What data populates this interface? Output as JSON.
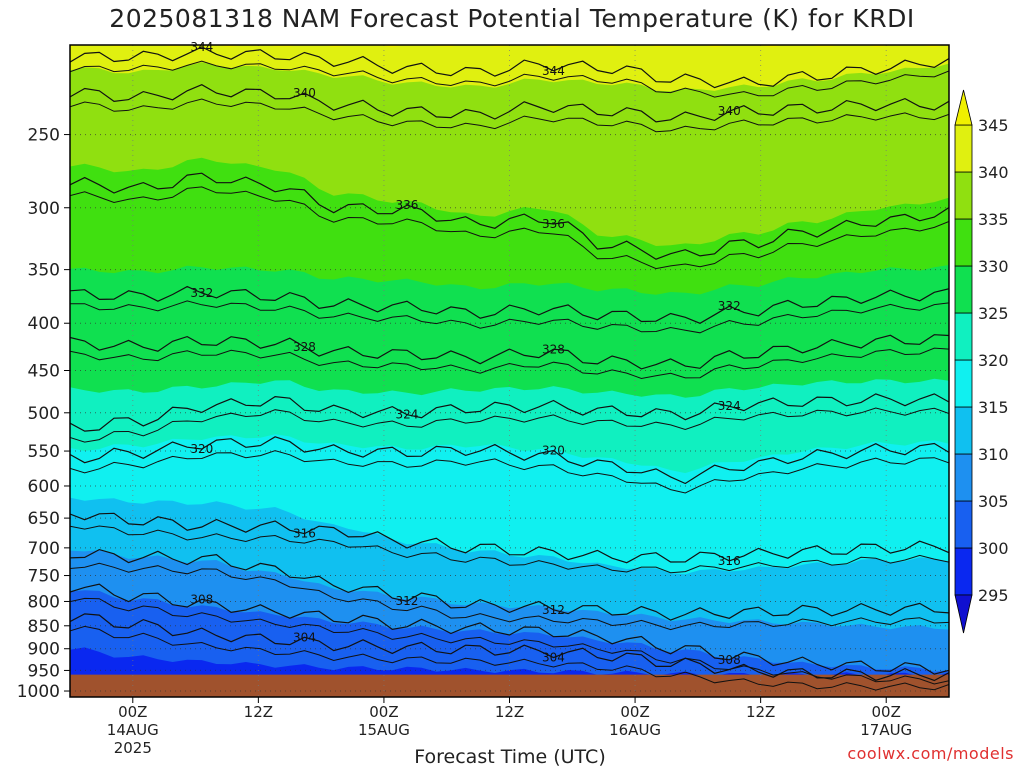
{
  "title": "2025081318 NAM Forecast Potential Temperature (K) for KRDI",
  "credit": "coolwx.com/models",
  "chart_data": {
    "type": "heatmap",
    "title": "2025081318 NAM Forecast Potential Temperature (K) for KRDI",
    "xlabel": "Forecast Time (UTC)",
    "ylabel": "",
    "x_ticks": [
      {
        "hour": 6,
        "label": "00Z",
        "sub": [
          "14AUG",
          "2025"
        ]
      },
      {
        "hour": 18,
        "label": "12Z",
        "sub": []
      },
      {
        "hour": 30,
        "label": "00Z",
        "sub": [
          "15AUG"
        ]
      },
      {
        "hour": 42,
        "label": "12Z",
        "sub": []
      },
      {
        "hour": 54,
        "label": "00Z",
        "sub": [
          "16AUG"
        ]
      },
      {
        "hour": 66,
        "label": "12Z",
        "sub": []
      },
      {
        "hour": 78,
        "label": "00Z",
        "sub": [
          "17AUG"
        ]
      }
    ],
    "xlim": [
      0,
      84
    ],
    "y_ticks": [
      250,
      300,
      350,
      400,
      450,
      500,
      550,
      600,
      650,
      700,
      750,
      800,
      850,
      900,
      950,
      1000
    ],
    "ylim_hPa": [
      200,
      1015
    ],
    "surface_pressure_hPa": 960,
    "colorbar": {
      "levels": [
        295,
        300,
        305,
        310,
        315,
        320,
        325,
        330,
        335,
        340,
        345
      ],
      "colors": [
        "#1010d0",
        "#0a28f0",
        "#1860f0",
        "#1e90f0",
        "#10c0f0",
        "#10f0f0",
        "#10f0c0",
        "#10e050",
        "#40e010",
        "#90e010",
        "#e0f010",
        "#f0f000"
      ],
      "labels": [
        "295",
        "300",
        "305",
        "310",
        "315",
        "320",
        "325",
        "330",
        "335",
        "340",
        "345"
      ]
    },
    "isotherms": [
      {
        "theta": 344,
        "label": "344",
        "p": [
          206,
          206,
          204,
          205,
          208,
          212,
          214,
          210,
          212,
          218,
          220,
          216,
          212,
          208
        ]
      },
      {
        "theta": 340,
        "label": "340",
        "p": [
          225,
          228,
          224,
          226,
          232,
          236,
          238,
          233,
          236,
          240,
          236,
          234,
          232,
          232
        ]
      },
      {
        "theta": 336,
        "label": "336",
        "p": [
          282,
          286,
          278,
          284,
          300,
          302,
          312,
          308,
          330,
          338,
          328,
          318,
          310,
          304
        ]
      },
      {
        "theta": 332,
        "label": "332",
        "p": [
          372,
          374,
          370,
          374,
          382,
          384,
          390,
          386,
          392,
          396,
          388,
          380,
          374,
          372
        ]
      },
      {
        "theta": 328,
        "label": "328",
        "p": [
          420,
          424,
          418,
          420,
          430,
          432,
          436,
          430,
          440,
          444,
          432,
          424,
          418,
          416
        ]
      },
      {
        "theta": 324,
        "label": "324",
        "p": [
          520,
          510,
          492,
          485,
          498,
          500,
          494,
          492,
          498,
          502,
          490,
          486,
          484,
          484
        ]
      },
      {
        "theta": 320,
        "label": "320",
        "p": [
          560,
          552,
          540,
          538,
          550,
          552,
          548,
          556,
          570,
          588,
          570,
          556,
          548,
          546
        ]
      },
      {
        "theta": 316,
        "label": "316",
        "p": [
          642,
          654,
          662,
          664,
          672,
          690,
          700,
          708,
          716,
          718,
          712,
          706,
          700,
          698
        ]
      },
      {
        "theta": 312,
        "label": "312",
        "p": [
          710,
          716,
          720,
          738,
          770,
          790,
          808,
          812,
          818,
          826,
          822,
          818,
          816,
          814
        ]
      },
      {
        "theta": 308,
        "label": "308",
        "p": [
          770,
          790,
          806,
          820,
          834,
          848,
          856,
          862,
          876,
          900,
          920,
          934,
          942,
          946
        ]
      },
      {
        "theta": 304,
        "label": "304",
        "p": [
          830,
          848,
          868,
          880,
          892,
          898,
          902,
          906,
          916,
          934,
          950,
          958,
          960,
          960
        ]
      }
    ],
    "fill_boundaries": [
      {
        "upper_theta": 345,
        "p": [
          200,
          200,
          200,
          200,
          200,
          200,
          200,
          200,
          200,
          200,
          200,
          200,
          200,
          200
        ]
      },
      {
        "upper_theta": 340,
        "p": [
          212,
          214,
          210,
          212,
          216,
          220,
          222,
          218,
          220,
          224,
          222,
          218,
          214,
          210
        ]
      },
      {
        "upper_theta": 335,
        "p": [
          270,
          274,
          266,
          272,
          290,
          296,
          306,
          300,
          322,
          330,
          320,
          310,
          300,
          294
        ]
      },
      {
        "upper_theta": 330,
        "p": [
          350,
          352,
          348,
          350,
          358,
          360,
          366,
          362,
          368,
          372,
          364,
          356,
          350,
          348
        ]
      },
      {
        "upper_theta": 325,
        "p": [
          472,
          474,
          468,
          462,
          474,
          476,
          472,
          470,
          476,
          480,
          470,
          464,
          462,
          462
        ]
      },
      {
        "upper_theta": 320,
        "p": [
          548,
          542,
          532,
          530,
          542,
          546,
          542,
          548,
          562,
          578,
          562,
          548,
          540,
          538
        ]
      },
      {
        "upper_theta": 315,
        "p": [
          618,
          624,
          626,
          636,
          664,
          690,
          706,
          716,
          732,
          744,
          738,
          730,
          722,
          720
        ]
      },
      {
        "upper_theta": 310,
        "p": [
          702,
          716,
          724,
          746,
          776,
          792,
          806,
          812,
          824,
          836,
          840,
          846,
          852,
          854
        ]
      },
      {
        "upper_theta": 305,
        "p": [
          776,
          796,
          812,
          826,
          842,
          854,
          862,
          868,
          884,
          904,
          922,
          936,
          944,
          948
        ]
      },
      {
        "upper_theta": 300,
        "p": [
          900,
          920,
          930,
          938,
          944,
          946,
          950,
          952,
          956,
          958,
          960,
          960,
          960,
          960
        ]
      }
    ]
  }
}
